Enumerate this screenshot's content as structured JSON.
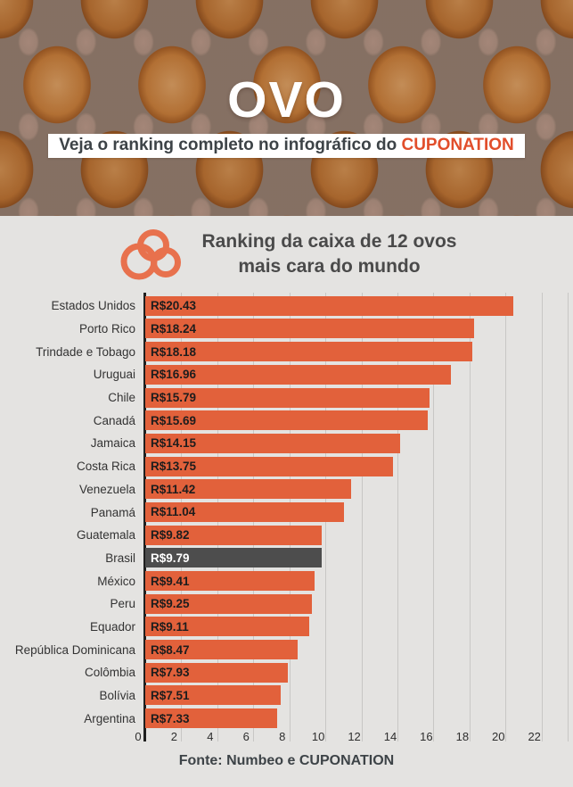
{
  "colors": {
    "background": "#E4E3E1",
    "accent_bar": "#E2613B",
    "highlight_bar": "#4D4D4D",
    "brand_text": "#E14E2B",
    "logo_orange": "#E8714D"
  },
  "hero": {
    "title": "OVO",
    "subtitle_text": "Veja o ranking completo no infográfico do",
    "subtitle_brand": "CUPONATION"
  },
  "ranking_header": {
    "icon": "cuponation-cloud-logo",
    "title_line1": "Ranking da caixa de 12 ovos",
    "title_line2": "mais cara do mundo"
  },
  "chart_data": {
    "type": "bar",
    "orientation": "horizontal",
    "title": "Ranking da caixa de 12 ovos mais cara do mundo",
    "categories": [
      "Estados Unidos",
      "Porto Rico",
      "Trindade e Tobago",
      "Uruguai",
      "Chile",
      "Canadá",
      "Jamaica",
      "Costa Rica",
      "Venezuela",
      "Panamá",
      "Guatemala",
      "Brasil",
      "México",
      "Peru",
      "Equador",
      "República Dominicana",
      "Colômbia",
      "Bolívia",
      "Argentina"
    ],
    "values": [
      20.43,
      18.24,
      18.18,
      16.96,
      15.79,
      15.69,
      14.15,
      13.75,
      11.42,
      11.04,
      9.82,
      9.79,
      9.41,
      9.25,
      9.11,
      8.47,
      7.93,
      7.51,
      7.33
    ],
    "value_labels": [
      "R$20.43",
      "R$18.24",
      "R$18.18",
      "R$16.96",
      "R$15.79",
      "R$15.69",
      "R$14.15",
      "R$13.75",
      "R$11.42",
      "R$11.04",
      "R$9.82",
      "R$9.79",
      "R$9.41",
      "R$9.25",
      "R$9.11",
      "R$8.47",
      "R$7.93",
      "R$7.51",
      "R$7.33"
    ],
    "currency_prefix": "R$",
    "highlight_index": 11,
    "highlight_category": "Brasil",
    "x_ticks": [
      0,
      2,
      4,
      6,
      8,
      10,
      12,
      14,
      16,
      18,
      20,
      22
    ],
    "xlim": [
      0,
      23.45
    ],
    "grid": true,
    "legend": false,
    "bar_color": "#E2613B",
    "highlight_color": "#4D4D4D"
  },
  "footer": {
    "source": "Fonte: Numbeo e CUPONATION"
  }
}
